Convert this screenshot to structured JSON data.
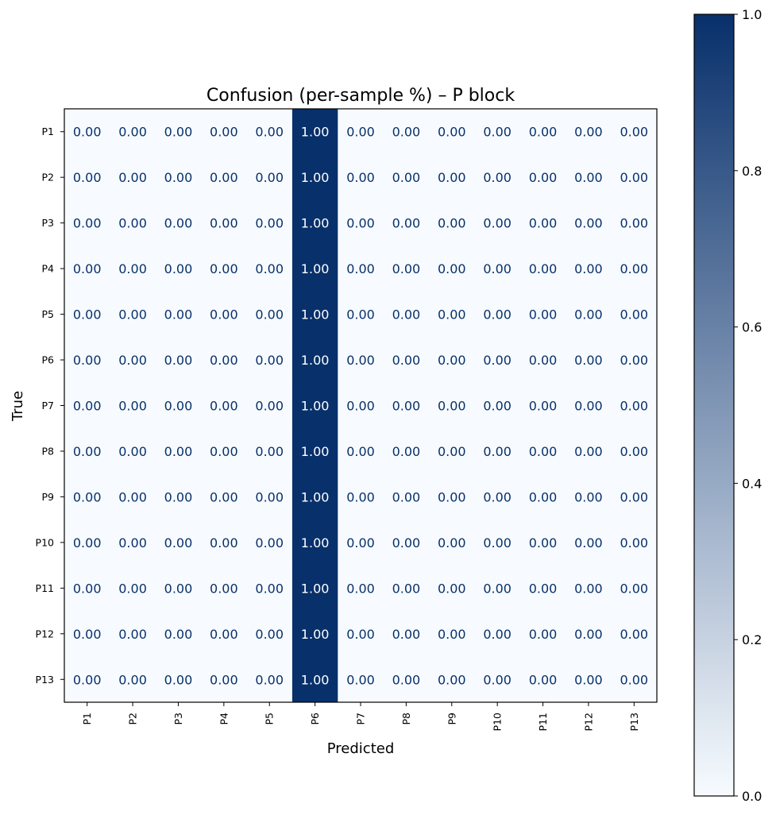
{
  "chart_data": {
    "type": "heatmap",
    "title": "Confusion (per-sample %) – P block",
    "xlabel": "Predicted",
    "ylabel": "True",
    "x_categories": [
      "P1",
      "P2",
      "P3",
      "P4",
      "P5",
      "P6",
      "P7",
      "P8",
      "P9",
      "P10",
      "P11",
      "P12",
      "P13"
    ],
    "y_categories": [
      "P1",
      "P2",
      "P3",
      "P4",
      "P5",
      "P6",
      "P7",
      "P8",
      "P9",
      "P10",
      "P11",
      "P12",
      "P13"
    ],
    "values": [
      [
        0,
        0,
        0,
        0,
        0,
        1,
        0,
        0,
        0,
        0,
        0,
        0,
        0
      ],
      [
        0,
        0,
        0,
        0,
        0,
        1,
        0,
        0,
        0,
        0,
        0,
        0,
        0
      ],
      [
        0,
        0,
        0,
        0,
        0,
        1,
        0,
        0,
        0,
        0,
        0,
        0,
        0
      ],
      [
        0,
        0,
        0,
        0,
        0,
        1,
        0,
        0,
        0,
        0,
        0,
        0,
        0
      ],
      [
        0,
        0,
        0,
        0,
        0,
        1,
        0,
        0,
        0,
        0,
        0,
        0,
        0
      ],
      [
        0,
        0,
        0,
        0,
        0,
        1,
        0,
        0,
        0,
        0,
        0,
        0,
        0
      ],
      [
        0,
        0,
        0,
        0,
        0,
        1,
        0,
        0,
        0,
        0,
        0,
        0,
        0
      ],
      [
        0,
        0,
        0,
        0,
        0,
        1,
        0,
        0,
        0,
        0,
        0,
        0,
        0
      ],
      [
        0,
        0,
        0,
        0,
        0,
        1,
        0,
        0,
        0,
        0,
        0,
        0,
        0
      ],
      [
        0,
        0,
        0,
        0,
        0,
        1,
        0,
        0,
        0,
        0,
        0,
        0,
        0
      ],
      [
        0,
        0,
        0,
        0,
        0,
        1,
        0,
        0,
        0,
        0,
        0,
        0,
        0
      ],
      [
        0,
        0,
        0,
        0,
        0,
        1,
        0,
        0,
        0,
        0,
        0,
        0,
        0
      ],
      [
        0,
        0,
        0,
        0,
        0,
        1,
        0,
        0,
        0,
        0,
        0,
        0,
        0
      ]
    ],
    "value_format": "0.00",
    "colormap": "Blues",
    "colorbar": {
      "range": [
        0.0,
        1.0
      ],
      "ticks": [
        "0.0",
        "0.2",
        "0.4",
        "0.6",
        "0.8",
        "1.0"
      ],
      "low_color": "#f7fbff",
      "high_color": "#08306b"
    },
    "label_color_light_cell": "#08306b",
    "label_color_dark_cell": "#ffffff",
    "grid": false,
    "legend": "colorbar-right"
  }
}
